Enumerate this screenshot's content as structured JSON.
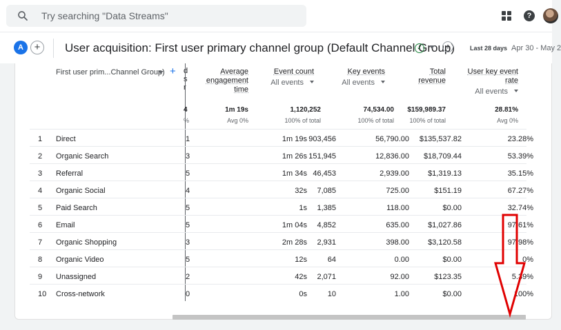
{
  "search": {
    "placeholder": "Try searching \"Data Streams\""
  },
  "header": {
    "account_initial": "A",
    "title": "User acquisition: First user primary channel group (Default Channel Group)",
    "date_label": "Last 28 days",
    "date_range": "Apr 30 - May 2"
  },
  "table": {
    "dimension_header": "First user prim...Channel Group)",
    "columns": [
      {
        "label": "Average engagement time",
        "lines": [
          "Average",
          "engagement",
          "time"
        ],
        "sub": ""
      },
      {
        "label": "Event count",
        "lines": [
          "Event count"
        ],
        "sub": "All events"
      },
      {
        "label": "Key events",
        "lines": [
          "Key events"
        ],
        "sub": "All events"
      },
      {
        "label": "Total revenue",
        "lines": [
          "Total",
          "revenue"
        ],
        "sub": ""
      },
      {
        "label": "User key event rate",
        "lines": [
          "User key event",
          "rate"
        ],
        "sub": "All events"
      }
    ],
    "cut_header_chars": [
      "d",
      "s",
      "r"
    ],
    "totals": {
      "cut": "4",
      "cut_pct": "%",
      "avg_time": "1m 19s",
      "avg_time_sub": "Avg 0%",
      "event_count": "1,120,252",
      "event_count_sub": "100% of total",
      "key_events": "74,534.00",
      "key_events_sub": "100% of total",
      "revenue": "$159,989.37",
      "revenue_sub": "100% of total",
      "rate": "28.81%",
      "rate_sub": "Avg 0%"
    },
    "rows": [
      {
        "idx": "1",
        "name": "Direct",
        "cut": "1",
        "avg_time": "1m 19s",
        "event_count": "903,456",
        "key_events": "56,790.00",
        "revenue": "$135,537.82",
        "rate": "23.28%"
      },
      {
        "idx": "2",
        "name": "Organic Search",
        "cut": "3",
        "avg_time": "1m 26s",
        "event_count": "151,945",
        "key_events": "12,836.00",
        "revenue": "$18,709.44",
        "rate": "53.39%"
      },
      {
        "idx": "3",
        "name": "Referral",
        "cut": "5",
        "avg_time": "1m 34s",
        "event_count": "46,453",
        "key_events": "2,939.00",
        "revenue": "$1,319.13",
        "rate": "35.15%"
      },
      {
        "idx": "4",
        "name": "Organic Social",
        "cut": "4",
        "avg_time": "32s",
        "event_count": "7,085",
        "key_events": "725.00",
        "revenue": "$151.19",
        "rate": "67.27%"
      },
      {
        "idx": "5",
        "name": "Paid Search",
        "cut": "5",
        "avg_time": "1s",
        "event_count": "1,385",
        "key_events": "118.00",
        "revenue": "$0.00",
        "rate": "32.74%"
      },
      {
        "idx": "6",
        "name": "Email",
        "cut": "5",
        "avg_time": "1m 04s",
        "event_count": "4,852",
        "key_events": "635.00",
        "revenue": "$1,027.86",
        "rate": "97.61%"
      },
      {
        "idx": "7",
        "name": "Organic Shopping",
        "cut": "3",
        "avg_time": "2m 28s",
        "event_count": "2,931",
        "key_events": "398.00",
        "revenue": "$3,120.58",
        "rate": "97.98%"
      },
      {
        "idx": "8",
        "name": "Organic Video",
        "cut": "5",
        "avg_time": "12s",
        "event_count": "64",
        "key_events": "0.00",
        "revenue": "$0.00",
        "rate": "0%"
      },
      {
        "idx": "9",
        "name": "Unassigned",
        "cut": "2",
        "avg_time": "42s",
        "event_count": "2,071",
        "key_events": "92.00",
        "revenue": "$123.35",
        "rate": "5.39%"
      },
      {
        "idx": "10",
        "name": "Cross-network",
        "cut": "0",
        "avg_time": "0s",
        "event_count": "10",
        "key_events": "1.00",
        "revenue": "$0.00",
        "rate": "100%"
      }
    ]
  },
  "colors": {
    "accent": "#1a73e8",
    "annotation": "#e00000",
    "success": "#188038"
  },
  "icons": [
    "search-icon",
    "apps-grid-icon",
    "help-icon",
    "avatar",
    "add-icon",
    "check-circle-icon",
    "chevron-down-icon",
    "down-arrow-annotation"
  ]
}
